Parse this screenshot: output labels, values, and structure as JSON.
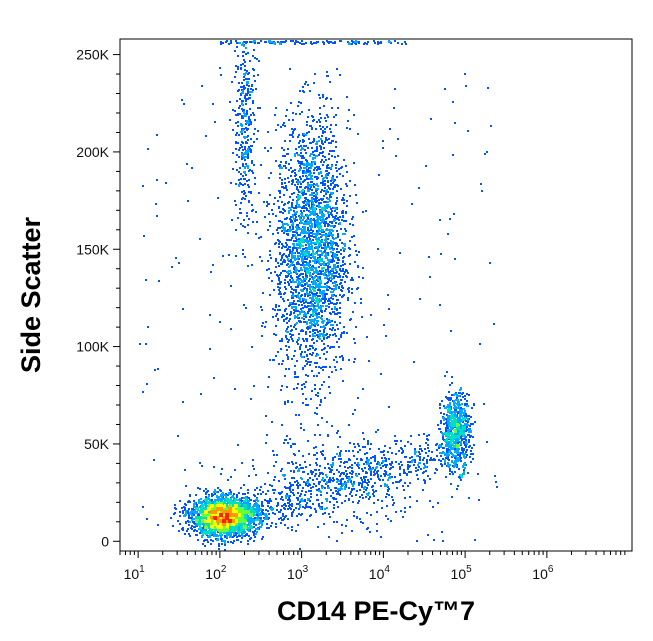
{
  "chart_data": {
    "type": "scatter",
    "title": "",
    "xlabel": "CD14 PE-Cy™7",
    "ylabel": "Side Scatter",
    "x_scale": "log",
    "xlim": [
      6,
      11000000
    ],
    "ylim": [
      -5000,
      258000
    ],
    "x_ticks": [
      {
        "value": 10,
        "base": "10",
        "exp": "1"
      },
      {
        "value": 100,
        "base": "10",
        "exp": "2"
      },
      {
        "value": 1000,
        "base": "10",
        "exp": "3"
      },
      {
        "value": 10000,
        "base": "10",
        "exp": "4"
      },
      {
        "value": 100000,
        "base": "10",
        "exp": "5"
      },
      {
        "value": 1000000,
        "base": "10",
        "exp": "6"
      }
    ],
    "y_ticks": [
      {
        "value": 0,
        "label": "0"
      },
      {
        "value": 50000,
        "label": "50K"
      },
      {
        "value": 100000,
        "label": "100K"
      },
      {
        "value": 150000,
        "label": "150K"
      },
      {
        "value": 200000,
        "label": "200K"
      },
      {
        "value": 250000,
        "label": "250K"
      }
    ],
    "color_scale": [
      "#0000cc",
      "#0055ff",
      "#00aaff",
      "#00e0c0",
      "#66ff33",
      "#ffff00",
      "#ff9900",
      "#ff2200"
    ],
    "populations": [
      {
        "x_center": 110,
        "y_center": 13000,
        "x_spread_decades": 0.2,
        "y_spread": 5000,
        "points": 2600
      },
      {
        "x_center": 1300,
        "y_center": 150000,
        "x_spread_decades": 0.22,
        "y_spread": 33000,
        "points": 2600
      },
      {
        "x_center": 75000,
        "y_center": 57000,
        "x_spread_decades": 0.09,
        "y_spread": 10000,
        "points": 700
      },
      {
        "x_center": 200,
        "y_center": 215000,
        "x_spread_decades": 0.07,
        "y_spread": 28000,
        "points": 350
      },
      {
        "x_center": 2500,
        "y_center": 30000,
        "x_spread_decades": 0.55,
        "y_spread": 12000,
        "points": 450
      }
    ],
    "grid": false,
    "legend": "none"
  }
}
